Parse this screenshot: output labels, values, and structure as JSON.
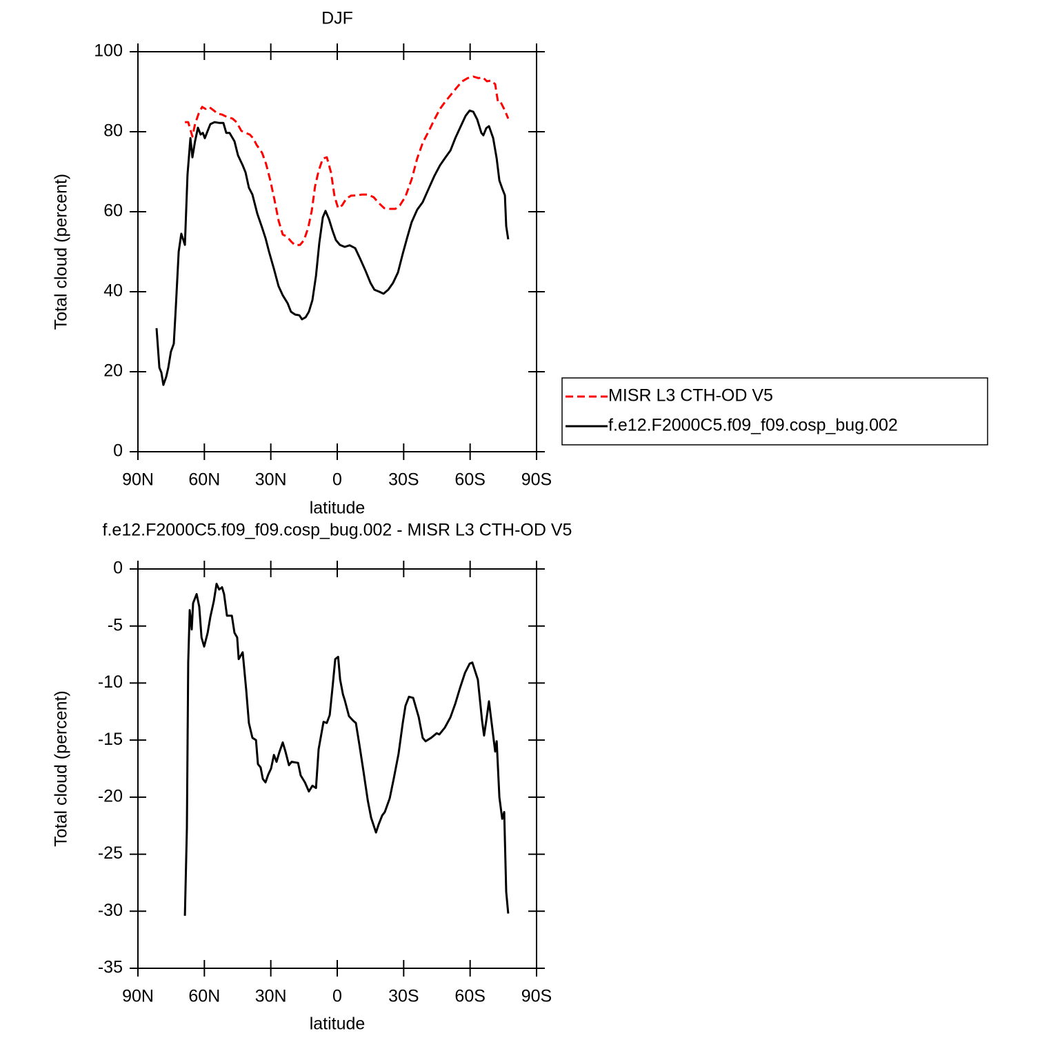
{
  "chart_data": [
    {
      "type": "line",
      "title": "DJF",
      "xlabel": "latitude",
      "ylabel": "Total cloud (percent)",
      "xlim": [
        90,
        -90
      ],
      "xticks": [
        {
          "value": 90,
          "label": "90N"
        },
        {
          "value": 60,
          "label": "60N"
        },
        {
          "value": 30,
          "label": "30N"
        },
        0,
        {
          "value": -30,
          "label": "30S"
        },
        {
          "value": -60,
          "label": "60S"
        },
        {
          "value": -90,
          "label": "90S"
        }
      ],
      "ylim": [
        0,
        100
      ],
      "yticks": [
        0,
        20,
        40,
        60,
        80,
        100
      ],
      "legend": "right",
      "series": [
        {
          "name": "MISR L3 CTH-OD V5",
          "color": "#ff0000",
          "dash": true,
          "x": [
            68.8,
            67.3,
            65.4,
            64.2,
            62.6,
            61,
            59.5,
            57.9,
            55.7,
            53.9,
            52,
            49.5,
            47.3,
            45.5,
            43.3,
            41.4,
            39.5,
            38,
            36.4,
            33.9,
            32.1,
            30.2,
            28.3,
            26.5,
            24.6,
            22.7,
            20.9,
            19,
            16.8,
            15,
            13.1,
            11.5,
            10,
            8.4,
            6.5,
            4.7,
            2.8,
            1.2,
            -0.4,
            -2.2,
            -4.1,
            -6.2,
            -8.7,
            -11.2,
            -14,
            -16.5,
            -18.7,
            -21.2,
            -23.7,
            -26.2,
            -28.3,
            -30.8,
            -33.6,
            -36.1,
            -38.6,
            -41.4,
            -43.9,
            -46.4,
            -48.9,
            -51.4,
            -53.9,
            -56.4,
            -58.9,
            -61.4,
            -63.8,
            -65.7,
            -67.6,
            -69.5,
            -71.3,
            -72.6,
            -73.8,
            -75.7,
            -77.2
          ],
          "values": [
            82.4,
            82.4,
            78.8,
            81.9,
            84.5,
            86.2,
            85.7,
            86.2,
            85.3,
            84.5,
            84.3,
            83.6,
            83.3,
            82.4,
            80.2,
            79.7,
            79.3,
            78.4,
            76.7,
            74.7,
            71.9,
            67.8,
            62.9,
            57.8,
            54.3,
            53.8,
            52.6,
            51.6,
            51.7,
            52.9,
            56,
            60.3,
            66.4,
            70.2,
            73.3,
            73.6,
            69.8,
            63.8,
            60.9,
            61.6,
            63.3,
            64,
            64.1,
            64.3,
            64.3,
            63.6,
            62.2,
            60.9,
            60.7,
            60.7,
            61.6,
            63.8,
            68.1,
            73.3,
            77.2,
            80.2,
            83.1,
            85.7,
            87.6,
            89.3,
            91,
            92.6,
            93.4,
            93.8,
            93.4,
            93.6,
            92.6,
            92.8,
            91.9,
            87.4,
            87.4,
            85.3,
            83.3
          ]
        },
        {
          "name": "f.e12.F2000C5.f09_f09.cosp_bug.002",
          "color": "#000000",
          "dash": false,
          "x": [
            81.6,
            80.3,
            79.4,
            78.5,
            77.2,
            76.3,
            75.1,
            73.8,
            72.9,
            71.6,
            70.4,
            68.8,
            67.6,
            66.3,
            65.4,
            64.2,
            62.9,
            61.7,
            60.7,
            59.8,
            58.5,
            57.3,
            55.4,
            53.3,
            51.4,
            50.1,
            48.6,
            46.4,
            44.8,
            42.7,
            41.4,
            39.9,
            38.3,
            36.1,
            33.9,
            32.4,
            30.8,
            28.6,
            26.5,
            24.6,
            22.4,
            20.9,
            19,
            17.1,
            15.9,
            14.3,
            12.8,
            11.2,
            9.6,
            8.1,
            6.5,
            5.3,
            3.7,
            2.1,
            0.6,
            -1.2,
            -3.4,
            -5.6,
            -8.1,
            -10.3,
            -12.8,
            -15,
            -16.8,
            -19,
            -20.9,
            -23,
            -25.2,
            -27.4,
            -29.6,
            -31.5,
            -33.6,
            -36.1,
            -38.6,
            -41.4,
            -43.9,
            -46.4,
            -48.9,
            -51.1,
            -53.3,
            -55.8,
            -58,
            -59.8,
            -61.4,
            -63.2,
            -65.1,
            -66,
            -67.3,
            -68.5,
            -70.4,
            -72,
            -73.2,
            -74.7,
            -75.7,
            -76.3,
            -77.2
          ],
          "values": [
            30.9,
            21,
            19.8,
            16.7,
            18.8,
            21,
            25,
            27,
            36,
            50,
            54.5,
            51.7,
            69.3,
            78.4,
            73.6,
            77.6,
            81,
            79.3,
            79.7,
            78.4,
            80.2,
            81.9,
            82.4,
            82.2,
            82.2,
            79.7,
            79.7,
            77.6,
            74.1,
            71.6,
            69.8,
            66,
            64.3,
            59.5,
            56,
            53.4,
            50,
            45.7,
            41.4,
            39.1,
            37.1,
            35,
            34.3,
            34.1,
            33.1,
            33.6,
            35,
            37.9,
            44,
            52.2,
            58.6,
            60.2,
            58.1,
            55.2,
            52.9,
            51.7,
            51.2,
            51.6,
            50.9,
            48.3,
            45.2,
            42.2,
            40.5,
            40,
            39.5,
            40.5,
            42.2,
            44.8,
            49.5,
            53.4,
            57.4,
            60.5,
            62.4,
            65.9,
            69,
            71.6,
            73.6,
            75.3,
            78.4,
            81.4,
            84,
            85.3,
            85,
            83.1,
            79.7,
            79.1,
            80.9,
            81.4,
            78.4,
            73.3,
            67.8,
            65.5,
            64.1,
            56.4,
            53.1
          ]
        }
      ]
    },
    {
      "type": "line",
      "title": "f.e12.F2000C5.f09_f09.cosp_bug.002 - MISR L3 CTH-OD V5",
      "xlabel": "latitude",
      "ylabel": "Total cloud (percent)",
      "xlim": [
        90,
        -90
      ],
      "xticks": [
        {
          "value": 90,
          "label": "90N"
        },
        {
          "value": 60,
          "label": "60N"
        },
        {
          "value": 30,
          "label": "30N"
        },
        0,
        {
          "value": -30,
          "label": "30S"
        },
        {
          "value": -60,
          "label": "60S"
        },
        {
          "value": -90,
          "label": "90S"
        }
      ],
      "ylim": [
        -35,
        0
      ],
      "yticks": [
        -35,
        -30,
        -25,
        -20,
        -15,
        -10,
        -5,
        0
      ],
      "series": [
        {
          "color": "#000000",
          "dash": false,
          "x": [
            68.8,
            67.9,
            67.3,
            66.6,
            65.7,
            65.1,
            63.5,
            62.3,
            61.3,
            60.1,
            58.5,
            57.3,
            55.7,
            54.5,
            53.3,
            52,
            51.1,
            49.8,
            47.6,
            46.4,
            45.2,
            44.5,
            42.7,
            41.1,
            39.9,
            38.3,
            36.7,
            35.8,
            34.6,
            33.6,
            32.4,
            31.1,
            29.9,
            28.6,
            27.4,
            26.2,
            24.6,
            23.4,
            21.8,
            20.6,
            17.7,
            16.5,
            14.6,
            12.8,
            11.2,
            9.6,
            8.4,
            6.2,
            4.7,
            3.4,
            2.1,
            0.9,
            -0.4,
            -1.3,
            -2.6,
            -3.4,
            -5.3,
            -7.2,
            -8.4,
            -10,
            -11.9,
            -13.8,
            -15.3,
            -17.5,
            -18.7,
            -20.3,
            -21.5,
            -23.7,
            -25.6,
            -27.7,
            -29.6,
            -30.8,
            -32.4,
            -34.3,
            -36.8,
            -38.6,
            -39.9,
            -42.4,
            -44.9,
            -46.1,
            -48.6,
            -51.1,
            -53.3,
            -55.5,
            -57.7,
            -59.8,
            -61,
            -63.5,
            -65.4,
            -66.3,
            -67.3,
            -68.5,
            -69.8,
            -71.3,
            -72,
            -73.2,
            -74.5,
            -75.4,
            -76.3,
            -77.2
          ],
          "values": [
            -30.4,
            -22.7,
            -8.2,
            -3.6,
            -5.3,
            -3,
            -2.2,
            -3.3,
            -6,
            -6.8,
            -5.6,
            -4.2,
            -2.8,
            -1.3,
            -1.8,
            -1.6,
            -2.2,
            -4.1,
            -4.1,
            -5.6,
            -6,
            -7.9,
            -7.3,
            -10.6,
            -13.5,
            -14.8,
            -15,
            -17.1,
            -17.4,
            -18.4,
            -18.7,
            -18,
            -17.5,
            -16.3,
            -16.9,
            -16.1,
            -15.2,
            -16,
            -17.2,
            -16.9,
            -17,
            -18.1,
            -18.7,
            -19.5,
            -19,
            -19.2,
            -15.8,
            -13.4,
            -13.5,
            -12.8,
            -10.3,
            -7.9,
            -7.7,
            -9.7,
            -11,
            -11.5,
            -12.9,
            -13.3,
            -13.5,
            -15.4,
            -17.8,
            -20.3,
            -21.8,
            -23.1,
            -22.4,
            -21.6,
            -21.3,
            -20.1,
            -18.3,
            -16.2,
            -13.5,
            -12,
            -11.2,
            -11.3,
            -13,
            -14.8,
            -15.1,
            -14.8,
            -14.4,
            -14.5,
            -13.9,
            -13,
            -11.8,
            -10.4,
            -9.1,
            -8.3,
            -8.2,
            -9.7,
            -13.3,
            -14.6,
            -13.3,
            -11.6,
            -13.6,
            -16,
            -15.1,
            -20,
            -21.9,
            -21.3,
            -28.3,
            -30.2
          ]
        }
      ]
    }
  ]
}
